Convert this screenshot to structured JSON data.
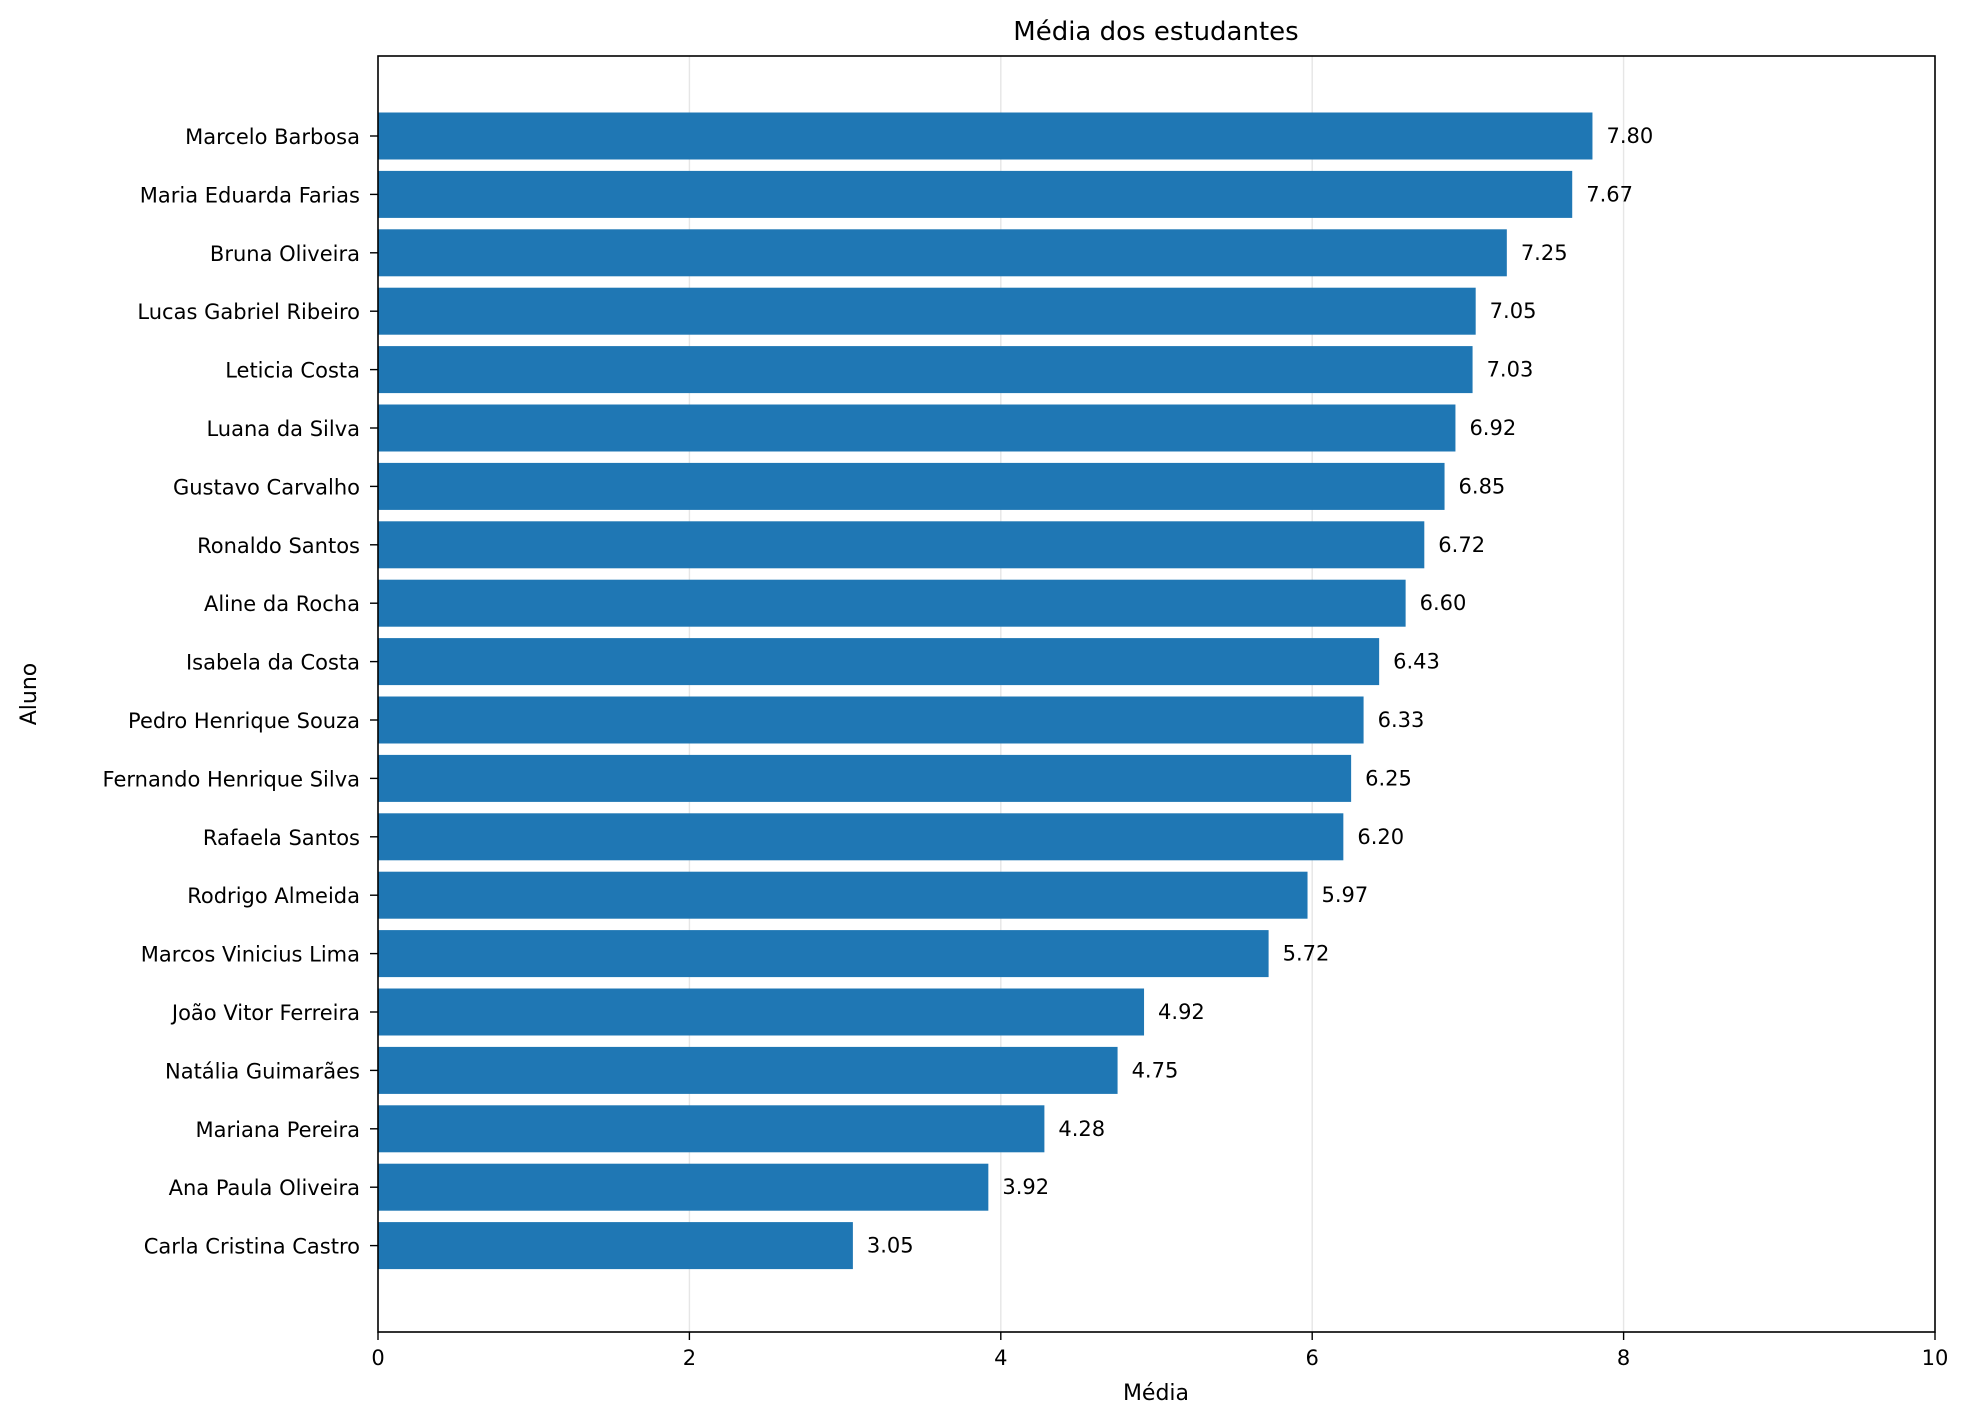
{
  "chart_data": {
    "type": "bar",
    "orientation": "horizontal",
    "title": "Média dos estudantes",
    "xlabel": "Média",
    "ylabel": "Aluno",
    "xlim": [
      0,
      10
    ],
    "xticks": [
      "0",
      "2",
      "4",
      "6",
      "8",
      "10"
    ],
    "grid": "x",
    "bar_color": "#1f77b4",
    "categories": [
      "Marcelo Barbosa",
      "Maria Eduarda Farias",
      "Bruna Oliveira",
      "Lucas Gabriel Ribeiro",
      "Leticia Costa",
      "Luana da Silva",
      "Gustavo Carvalho",
      "Ronaldo Santos",
      "Aline da Rocha",
      "Isabela da Costa",
      "Pedro Henrique Souza",
      "Fernando Henrique Silva",
      "Rafaela Santos",
      "Rodrigo Almeida",
      "Marcos Vinicius Lima",
      "João Vitor Ferreira",
      "Natália Guimarães",
      "Mariana Pereira",
      "Ana Paula Oliveira",
      "Carla Cristina Castro"
    ],
    "values": [
      7.8,
      7.67,
      7.25,
      7.05,
      7.03,
      6.92,
      6.85,
      6.72,
      6.6,
      6.43,
      6.33,
      6.25,
      6.2,
      5.97,
      5.72,
      4.92,
      4.75,
      4.28,
      3.92,
      3.05
    ],
    "data_labels": [
      "7.80",
      "7.67",
      "7.25",
      "7.05",
      "7.03",
      "6.92",
      "6.85",
      "6.72",
      "6.60",
      "6.43",
      "6.33",
      "6.25",
      "6.20",
      "5.97",
      "5.72",
      "4.92",
      "4.75",
      "4.28",
      "3.92",
      "3.05"
    ]
  }
}
